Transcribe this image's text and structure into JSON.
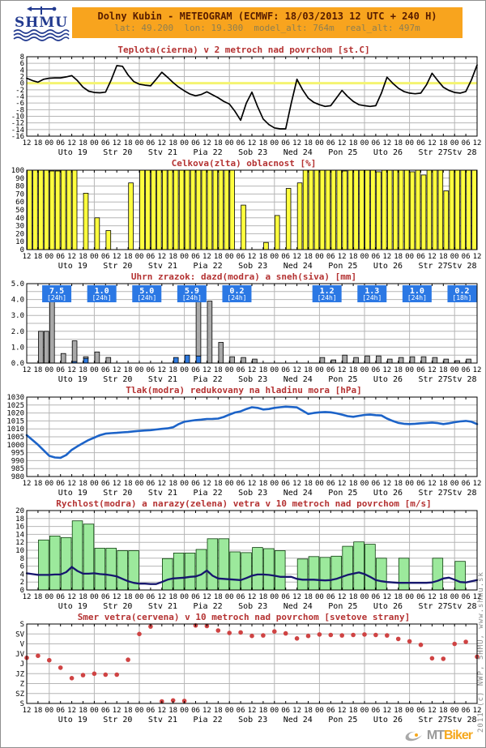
{
  "header": {
    "logo_text": "SHMU",
    "title": "Dolny Kubin - METEOGRAM (ECMWF: 18/03/2013 12 UTC + 240 H)",
    "subtitle": "lat: 49.200  lon: 19.300  model_alt: 764m  real_alt: 497m",
    "bar_color": "#f8a41e",
    "title_color": "#571c00",
    "subtitle_color": "#8d7f52"
  },
  "footer": {
    "copyright_vertical": "2011 (c) NWP, SHMU, www.shmu.sk",
    "watermark": {
      "prefix": "MT",
      "suffix": "Biker",
      "prefix_color": "#9a9a9a",
      "suffix_color": "#f5a81e"
    }
  },
  "x_axis": {
    "total_h": 240,
    "tick_step_h": 6,
    "tick_cycle": [
      "12",
      "18",
      "00",
      "06"
    ],
    "day_labels": [
      "Uto 19",
      "Str 20",
      "Stv 21",
      "Pia 22",
      "Sob 23",
      "Ned 24",
      "Pon 25",
      "Uto 26",
      "Str 27",
      "Stv 28"
    ]
  },
  "chart_data": [
    {
      "id": "temperature",
      "type": "line",
      "title": "Teplota(cierna) v 2 metroch nad povrchom [st.C]",
      "ylim": [
        -16,
        8
      ],
      "yticks": [
        {
          "v": 8,
          "label": "8"
        },
        {
          "v": 6,
          "label": "6"
        },
        {
          "v": 4,
          "label": "4"
        },
        {
          "v": 2,
          "label": "2"
        },
        {
          "v": 0,
          "label": "0"
        },
        {
          "v": -2,
          "label": "-2"
        },
        {
          "v": -4,
          "label": "-4"
        },
        {
          "v": -6,
          "label": "-6"
        },
        {
          "v": -8,
          "label": "-8"
        },
        {
          "v": -10,
          "label": "-10"
        },
        {
          "v": -12,
          "label": "-12"
        },
        {
          "v": -14,
          "label": "-14"
        },
        {
          "v": -16,
          "label": "-16"
        }
      ],
      "zero_line_color": "#f4f470",
      "series": [
        {
          "name": "teplota",
          "type": "line",
          "color": "#000000",
          "width": 1.7,
          "step_h": 3,
          "values": [
            1.5,
            0.8,
            0.3,
            1.2,
            1.5,
            1.6,
            1.6,
            1.9,
            2.3,
            0.8,
            -1.2,
            -2.4,
            -2.8,
            -2.9,
            -2.7,
            1.0,
            5.3,
            5.1,
            2.5,
            0.5,
            -0.3,
            -0.6,
            -0.8,
            1.2,
            3.3,
            1.8,
            0.2,
            -1.2,
            -2.3,
            -3.3,
            -3.8,
            -3.4,
            -2.6,
            -3.5,
            -4.4,
            -5.5,
            -6.3,
            -8.5,
            -11.2,
            -6.0,
            -2.7,
            -7.0,
            -10.8,
            -12.5,
            -13.5,
            -13.8,
            -13.8,
            -6.0,
            1.2,
            -2.0,
            -4.5,
            -5.8,
            -6.5,
            -7.0,
            -6.8,
            -4.5,
            -2.2,
            -4.0,
            -5.5,
            -6.5,
            -6.8,
            -7.0,
            -6.8,
            -3.0,
            1.8,
            0.0,
            -1.5,
            -2.5,
            -3.0,
            -3.2,
            -3.0,
            -0.5,
            3.0,
            0.8,
            -1.2,
            -2.2,
            -2.8,
            -3.0,
            -2.5,
            1.0,
            5.5
          ]
        }
      ]
    },
    {
      "id": "cloud-cover",
      "type": "bar",
      "title": "Celkova(zlta) oblacnost [%]",
      "ylim": [
        0,
        100
      ],
      "yticks": [
        {
          "v": 100,
          "label": "100"
        },
        {
          "v": 90,
          "label": "90"
        },
        {
          "v": 80,
          "label": "80"
        },
        {
          "v": 70,
          "label": "70"
        },
        {
          "v": 60,
          "label": "60"
        },
        {
          "v": 50,
          "label": "50"
        },
        {
          "v": 40,
          "label": "40"
        },
        {
          "v": 30,
          "label": "30"
        },
        {
          "v": 20,
          "label": "20"
        },
        {
          "v": 10,
          "label": "10"
        },
        {
          "v": 0,
          "label": "0"
        }
      ],
      "series": [
        {
          "name": "oblacnost",
          "type": "bars",
          "color": "#ffff3e",
          "stroke": "#000000",
          "step_h": 3,
          "values": [
            100,
            100,
            100,
            100,
            99,
            99,
            100,
            100,
            100,
            0,
            71,
            0,
            40,
            0,
            24,
            0,
            0,
            0,
            84,
            0,
            100,
            100,
            100,
            100,
            100,
            100,
            100,
            100,
            100,
            100,
            100,
            100,
            100,
            100,
            100,
            100,
            100,
            0,
            56,
            0,
            0,
            0,
            9,
            0,
            43,
            0,
            77,
            0,
            84,
            100,
            100,
            100,
            100,
            100,
            100,
            100,
            99,
            100,
            100,
            100,
            100,
            100,
            98,
            100,
            100,
            100,
            100,
            100,
            98,
            100,
            94,
            100,
            100,
            100,
            74,
            100,
            100,
            100,
            100,
            100
          ]
        }
      ]
    },
    {
      "id": "precipitation",
      "type": "bar",
      "title": "Uhrn zrazok: dazd(modra) a sneh(siva) [mm]",
      "ylim": [
        0,
        5
      ],
      "yticks": [
        {
          "v": 5,
          "label": "5.0"
        },
        {
          "v": 4.5,
          "label": ""
        },
        {
          "v": 4,
          "label": "4.0"
        },
        {
          "v": 3.5,
          "label": ""
        },
        {
          "v": 3,
          "label": "3.0"
        },
        {
          "v": 2.5,
          "label": ""
        },
        {
          "v": 2,
          "label": "2.0"
        },
        {
          "v": 1.5,
          "label": ""
        },
        {
          "v": 1,
          "label": "1.0"
        },
        {
          "v": 0.5,
          "label": ""
        },
        {
          "v": 0,
          "label": "0.0"
        }
      ],
      "label_box_color": "#2b78e4",
      "day_totals": [
        {
          "day": 0,
          "value": "7.5",
          "period": "[24h]"
        },
        {
          "day": 1,
          "value": "1.0",
          "period": "[24h]"
        },
        {
          "day": 2,
          "value": "5.0",
          "period": "[24h]"
        },
        {
          "day": 3,
          "value": "5.9",
          "period": "[24h]"
        },
        {
          "day": 4,
          "value": "0.2",
          "period": "[24h]"
        },
        {
          "day": 6,
          "value": "1.2",
          "period": "[24h]"
        },
        {
          "day": 7,
          "value": "1.3",
          "period": "[24h]"
        },
        {
          "day": 8,
          "value": "1.0",
          "period": "[24h]"
        },
        {
          "day": 9,
          "value": "0.2",
          "period": "[18h]"
        }
      ],
      "series": [
        {
          "name": "dazd",
          "type": "stackbars",
          "color": "#2e7ae0",
          "stroke": "#000000",
          "step_h": 3,
          "values": [
            0,
            0,
            0,
            0,
            0,
            0,
            0,
            0,
            0.1,
            0,
            0.3,
            0,
            0,
            0,
            0,
            0,
            0,
            0,
            0,
            0,
            0,
            0,
            0,
            0,
            0,
            0,
            0.35,
            0,
            0.5,
            0,
            0.45,
            0,
            0,
            0,
            0,
            0,
            0,
            0,
            0,
            0,
            0,
            0,
            0,
            0,
            0,
            0,
            0,
            0,
            0,
            0,
            0,
            0,
            0,
            0,
            0,
            0,
            0,
            0,
            0,
            0,
            0,
            0,
            0,
            0,
            0,
            0,
            0,
            0,
            0,
            0,
            0,
            0,
            0,
            0,
            0,
            0,
            0,
            0,
            0,
            0
          ]
        },
        {
          "name": "sneh",
          "type": "stackbars",
          "color": "#a9a9a9",
          "stroke": "#000000",
          "step_h": 3,
          "values": [
            0,
            0,
            2.0,
            2.0,
            4.0,
            0,
            0.6,
            0,
            1.3,
            0,
            0.1,
            0,
            0.7,
            0,
            0.35,
            0,
            0,
            0,
            0,
            0,
            0,
            0,
            0,
            0,
            0,
            0,
            0,
            0,
            0,
            0,
            3.75,
            0,
            3.9,
            0,
            1.3,
            0,
            0.4,
            0,
            0.35,
            0,
            0.25,
            0,
            0,
            0,
            0,
            0,
            0,
            0,
            0,
            0,
            0,
            0,
            0.35,
            0,
            0.2,
            0,
            0.5,
            0,
            0.35,
            0,
            0.45,
            0,
            0.45,
            0,
            0.25,
            0,
            0.35,
            0,
            0.4,
            0,
            0.4,
            0,
            0.35,
            0,
            0.25,
            0,
            0.15,
            0,
            0.25,
            0
          ]
        }
      ]
    },
    {
      "id": "pressure",
      "type": "line",
      "title": "Tlak(modra) redukovany na hladinu mora [hPa]",
      "ylim": [
        980,
        1030
      ],
      "yticks": [
        {
          "v": 1030,
          "label": "1030"
        },
        {
          "v": 1025,
          "label": "1025"
        },
        {
          "v": 1020,
          "label": "1020"
        },
        {
          "v": 1015,
          "label": "1015"
        },
        {
          "v": 1010,
          "label": "1010"
        },
        {
          "v": 1005,
          "label": "1005"
        },
        {
          "v": 1000,
          "label": "1000"
        },
        {
          "v": 995,
          "label": "995"
        },
        {
          "v": 990,
          "label": "990"
        },
        {
          "v": 985,
          "label": "985"
        },
        {
          "v": 980,
          "label": "980"
        }
      ],
      "series": [
        {
          "name": "tlak",
          "type": "line",
          "color": "#1c63c8",
          "width": 2.6,
          "step_h": 3,
          "values": [
            1006,
            1003,
            1000,
            996.5,
            993,
            992,
            991.8,
            993.5,
            996.8,
            999,
            1001,
            1003,
            1004.5,
            1006,
            1007,
            1007.3,
            1007.5,
            1007.8,
            1008,
            1008.4,
            1008.7,
            1009,
            1009.2,
            1009.6,
            1010,
            1010.3,
            1011,
            1013,
            1014.5,
            1015,
            1015.5,
            1015.8,
            1016.2,
            1016.3,
            1016.5,
            1017.5,
            1019,
            1020.3,
            1021,
            1022.5,
            1023.6,
            1023.2,
            1022.2,
            1022.5,
            1023.2,
            1023.6,
            1024,
            1023.8,
            1023.5,
            1021.5,
            1019.4,
            1020,
            1020.4,
            1020.6,
            1020.4,
            1019.8,
            1019,
            1018,
            1017.6,
            1018.2,
            1018.8,
            1019,
            1018.6,
            1018.4,
            1016.5,
            1015,
            1013.8,
            1013.2,
            1013,
            1013.2,
            1013.5,
            1013.7,
            1014,
            1013.6,
            1013,
            1013.5,
            1014.2,
            1014.7,
            1015,
            1014.5,
            1013
          ]
        }
      ]
    },
    {
      "id": "wind",
      "type": "bar+line",
      "title": "Rychlost(modra) a narazy(zelena) vetra v 10 metroch nad povrchom [m/s]",
      "ylim": [
        0,
        20
      ],
      "yticks": [
        {
          "v": 20,
          "label": "20"
        },
        {
          "v": 18,
          "label": "18"
        },
        {
          "v": 16,
          "label": "16"
        },
        {
          "v": 14,
          "label": "14"
        },
        {
          "v": 12,
          "label": "12"
        },
        {
          "v": 10,
          "label": "10"
        },
        {
          "v": 8,
          "label": "8"
        },
        {
          "v": 6,
          "label": "6"
        },
        {
          "v": 4,
          "label": "4"
        },
        {
          "v": 2,
          "label": "2"
        },
        {
          "v": 0,
          "label": "0"
        }
      ],
      "series": [
        {
          "name": "narazy",
          "type": "bars",
          "color": "#9ce99c",
          "stroke": "#0a3d0a",
          "step_h": 6,
          "values": [
            0,
            12.6,
            13.6,
            13.2,
            17.4,
            16.6,
            10.5,
            10.5,
            9.9,
            9.9,
            0,
            0,
            7.9,
            9.3,
            9.3,
            10.2,
            12.9,
            12.9,
            9.6,
            9.4,
            10.7,
            10.4,
            9.9,
            0,
            7.8,
            8.4,
            8.2,
            8.5,
            11.0,
            12.1,
            11.5,
            8.0,
            0,
            8.0,
            0,
            0,
            8.0,
            0,
            7.2,
            0
          ]
        },
        {
          "name": "rychlost",
          "type": "line",
          "color": "#16166e",
          "width": 2.3,
          "step_h": 3,
          "values": [
            4.2,
            4.0,
            3.8,
            3.8,
            3.8,
            3.9,
            3.9,
            4.5,
            5.8,
            4.8,
            4.1,
            4.1,
            4.2,
            4.0,
            3.9,
            3.7,
            3.4,
            2.8,
            2.2,
            1.8,
            1.6,
            1.6,
            1.5,
            1.5,
            2.0,
            2.6,
            2.9,
            3.0,
            3.1,
            3.3,
            3.4,
            3.9,
            4.9,
            3.6,
            2.9,
            2.8,
            2.7,
            2.6,
            2.5,
            3.0,
            3.6,
            3.9,
            3.9,
            3.8,
            3.6,
            3.3,
            3.3,
            3.3,
            2.8,
            2.6,
            2.6,
            2.6,
            2.5,
            2.4,
            2.5,
            2.8,
            3.3,
            3.8,
            4.1,
            4.4,
            4.0,
            3.3,
            2.5,
            2.2,
            2.0,
            1.9,
            1.8,
            1.8,
            1.8,
            1.8,
            1.8,
            1.8,
            1.9,
            2.3,
            2.9,
            3.1,
            2.6,
            2.0,
            1.9,
            2.2,
            2.5
          ]
        }
      ]
    },
    {
      "id": "wind-direction",
      "type": "scatter",
      "title": "Smer vetra(cervena) v 10 metroch nad povrchom [svetove strany]",
      "ylim": [
        8,
        0
      ],
      "yticks": [
        {
          "v": 0,
          "label": "S"
        },
        {
          "v": 1,
          "label": "SV"
        },
        {
          "v": 2,
          "label": "V"
        },
        {
          "v": 3,
          "label": "JV"
        },
        {
          "v": 4,
          "label": "J"
        },
        {
          "v": 5,
          "label": "JZ"
        },
        {
          "v": 6,
          "label": "Z"
        },
        {
          "v": 7,
          "label": "SZ"
        },
        {
          "v": 8,
          "label": "S"
        }
      ],
      "series": [
        {
          "name": "smer",
          "type": "dots",
          "color": "#cf4343",
          "step_h": 6,
          "values": [
            3.4,
            3.2,
            3.65,
            4.4,
            5.45,
            5.15,
            5.0,
            5.1,
            5.1,
            3.6,
            1.0,
            0.25,
            7.8,
            7.7,
            7.75,
            0.15,
            0.2,
            0.65,
            0.9,
            0.85,
            1.2,
            1.15,
            0.75,
            0.95,
            1.45,
            1.2,
            1.05,
            1.1,
            1.15,
            1.1,
            1.05,
            1.1,
            1.15,
            1.5,
            1.75,
            2.1,
            3.45,
            3.5,
            2.0,
            1.8,
            3.3
          ]
        }
      ]
    }
  ]
}
